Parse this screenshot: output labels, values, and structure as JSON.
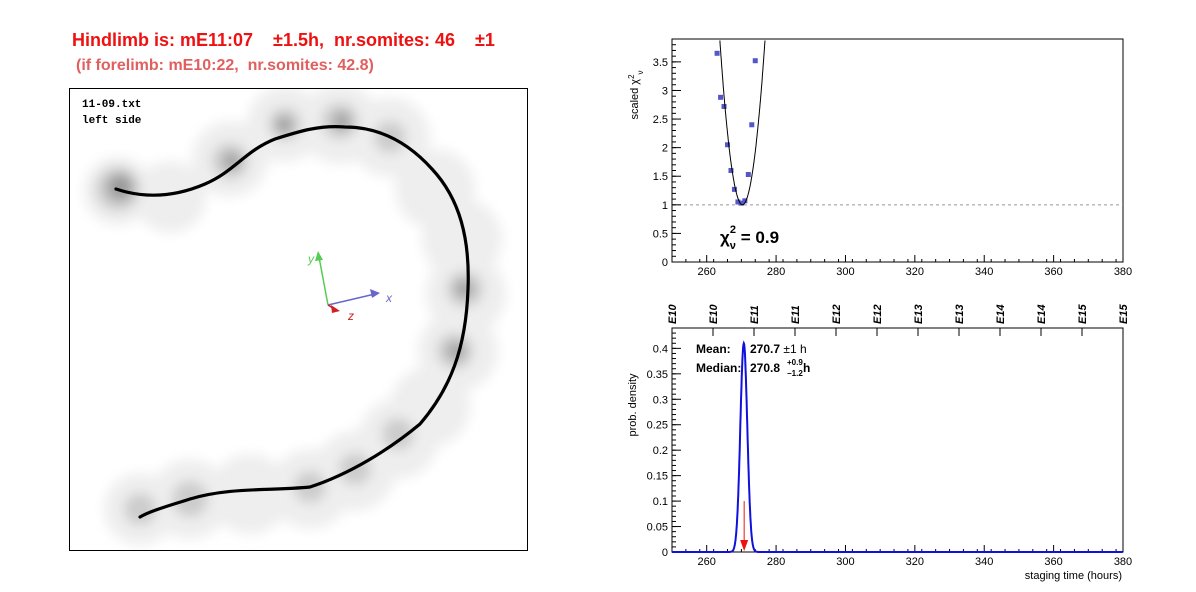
{
  "header": {
    "headline": "Hindlimb is: mE11:07    ±1.5h,  nr.somites: 46    ±1",
    "subline": "(if forelimb: mE10:22,  nr.somites: 42.8)"
  },
  "image_panel": {
    "filename": "11-09.txt",
    "side": "left side",
    "axes": {
      "x_label": "x",
      "y_label": "y",
      "z_label": "z"
    },
    "colors": {
      "x_axis": "#6666cc",
      "y_axis": "#55cc55",
      "z_axis": "#cc2222"
    }
  },
  "chart_data": [
    {
      "type": "scatter",
      "ylabel": "scaled χ²ν",
      "xlim": [
        250,
        380
      ],
      "ylim": [
        0,
        3.9
      ],
      "x_ticks": [
        260,
        280,
        300,
        320,
        340,
        360,
        380
      ],
      "y_ticks": [
        0,
        0.5,
        1,
        1.5,
        2,
        2.5,
        3,
        3.5
      ],
      "reference_line": 1,
      "points": [
        {
          "x": 263,
          "y": 3.65
        },
        {
          "x": 264,
          "y": 2.88
        },
        {
          "x": 265,
          "y": 2.72
        },
        {
          "x": 266,
          "y": 2.05
        },
        {
          "x": 267,
          "y": 1.6
        },
        {
          "x": 268,
          "y": 1.27
        },
        {
          "x": 269,
          "y": 1.05
        },
        {
          "x": 270,
          "y": 1.03
        },
        {
          "x": 271,
          "y": 1.07
        },
        {
          "x": 272,
          "y": 1.53
        },
        {
          "x": 273,
          "y": 2.4
        },
        {
          "x": 274,
          "y": 3.52
        }
      ],
      "fit_curve": {
        "center": 270.3,
        "min": 1.0,
        "a": 0.068
      },
      "annotation": {
        "symbol": "χ",
        "sub": "ν",
        "sup": "2",
        "value": " = 0.9"
      },
      "point_color": "#5555cc"
    },
    {
      "type": "line",
      "xlabel": "staging time (hours)",
      "ylabel": "prob. density",
      "xlim": [
        250,
        380
      ],
      "ylim": [
        0,
        0.44
      ],
      "x_ticks": [
        260,
        280,
        300,
        320,
        340,
        360,
        380
      ],
      "y_ticks": [
        0,
        0.05,
        0.1,
        0.15,
        0.2,
        0.25,
        0.3,
        0.35,
        0.4
      ],
      "top_axis_ticks": [
        {
          "x": 252,
          "label": "E10"
        },
        {
          "x": 264,
          "label": "E10"
        },
        {
          "x": 276,
          "label": "E11"
        },
        {
          "x": 288,
          "label": "E11"
        },
        {
          "x": 300,
          "label": "E12"
        },
        {
          "x": 312,
          "label": "E12"
        },
        {
          "x": 324,
          "label": "E13"
        },
        {
          "x": 336,
          "label": "E13"
        },
        {
          "x": 348,
          "label": "E14"
        },
        {
          "x": 360,
          "label": "E14"
        },
        {
          "x": 372,
          "label": "E15"
        },
        {
          "x": 384,
          "label": "E15"
        }
      ],
      "distribution": {
        "mean": 270.7,
        "sigma": 1.0,
        "peak": 0.41
      },
      "median_marker": 270.8,
      "stats": {
        "mean_label": "Mean:",
        "mean_value": "270.7",
        "mean_err": "±1 h",
        "median_label": "Median:",
        "median_value": "270.8",
        "median_plus": "+0.9",
        "median_minus": "−1.2",
        "median_unit": " h"
      },
      "line_color": "#1111dd",
      "marker_color": "#ee1111"
    }
  ]
}
